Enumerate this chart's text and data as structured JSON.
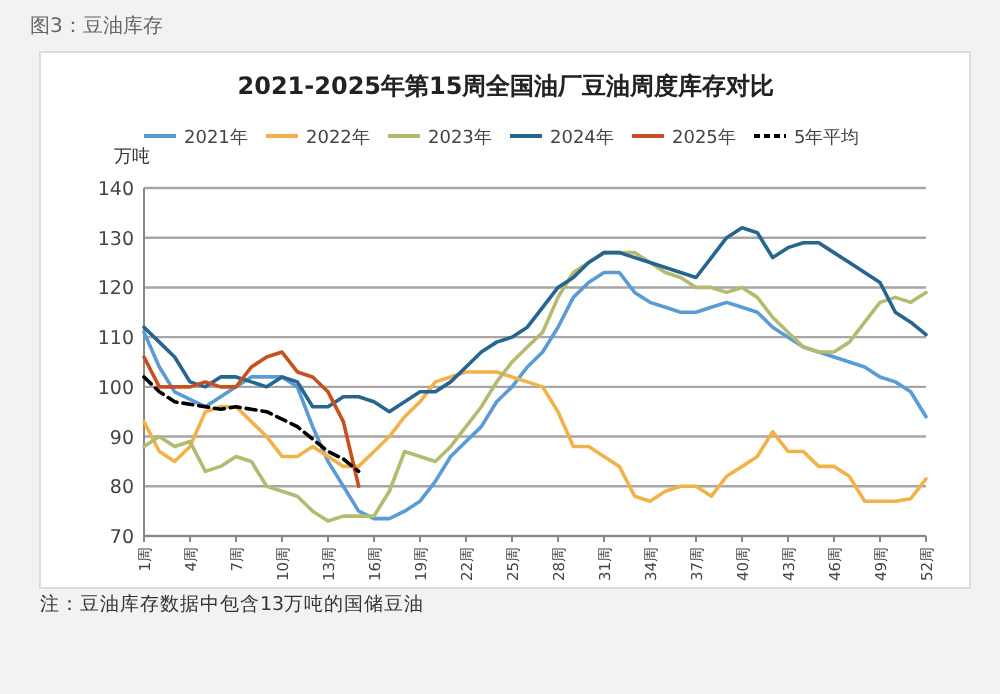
{
  "chart_data": {
    "type": "line",
    "title": "2021-2025年第15周全国油厂豆油周度库存对比",
    "ylabel": "万吨",
    "annotations": [
      "图3：豆油库存",
      "注：豆油库存数据中包含13万吨的国储豆油"
    ],
    "xlim": [
      1,
      52
    ],
    "xticks": [
      {
        "value": 1,
        "label": "1周"
      },
      {
        "value": 4,
        "label": "4周"
      },
      {
        "value": 7,
        "label": "7周"
      },
      {
        "value": 10,
        "label": "10周"
      },
      {
        "value": 13,
        "label": "13周"
      },
      {
        "value": 16,
        "label": "16周"
      },
      {
        "value": 19,
        "label": "19周"
      },
      {
        "value": 22,
        "label": "22周"
      },
      {
        "value": 25,
        "label": "25周"
      },
      {
        "value": 28,
        "label": "28周"
      },
      {
        "value": 31,
        "label": "31周"
      },
      {
        "value": 34,
        "label": "34周"
      },
      {
        "value": 37,
        "label": "37周"
      },
      {
        "value": 40,
        "label": "40周"
      },
      {
        "value": 43,
        "label": "43周"
      },
      {
        "value": 46,
        "label": "46周"
      },
      {
        "value": 49,
        "label": "49周"
      },
      {
        "value": 52,
        "label": "52周"
      }
    ],
    "ylim": [
      70,
      140
    ],
    "yticks": [
      70,
      80,
      90,
      100,
      110,
      120,
      130,
      140
    ],
    "grid": "y",
    "legend": "top",
    "marker": "none",
    "series": [
      {
        "name": "2021年",
        "color": "#5b9bd5",
        "x": [
          1,
          2,
          3,
          4,
          5,
          6,
          7,
          8,
          9,
          10,
          11,
          12,
          13,
          14,
          15,
          16,
          17,
          18,
          19,
          20,
          21,
          22,
          23,
          24,
          25,
          26,
          27,
          28,
          29,
          30,
          31,
          32,
          33,
          34,
          35,
          36,
          37,
          38,
          39,
          40,
          41,
          42,
          43,
          44,
          45,
          46,
          47,
          48,
          49,
          50,
          51,
          52
        ],
        "values": [
          111,
          104,
          99,
          97.5,
          96,
          98,
          100,
          102,
          102,
          102,
          100,
          92,
          85,
          80,
          75,
          73.5,
          73.5,
          75,
          77,
          81,
          86,
          89,
          92,
          97,
          100,
          104,
          107,
          112,
          118,
          121,
          123,
          123,
          119,
          117,
          116,
          115,
          115,
          116,
          117,
          116,
          115,
          112,
          110,
          108,
          107,
          106,
          105,
          104,
          102,
          101,
          99,
          94
        ]
      },
      {
        "name": "2022年",
        "color": "#f2b24a",
        "x": [
          1,
          2,
          3,
          4,
          5,
          6,
          7,
          8,
          9,
          10,
          11,
          12,
          13,
          14,
          15,
          16,
          17,
          18,
          19,
          20,
          21,
          22,
          23,
          24,
          25,
          26,
          27,
          28,
          29,
          30,
          31,
          32,
          33,
          34,
          35,
          36,
          37,
          38,
          39,
          40,
          41,
          42,
          43,
          44,
          45,
          46,
          47,
          48,
          49,
          50,
          51,
          52
        ],
        "values": [
          93,
          87,
          85,
          88,
          95,
          96,
          96,
          93,
          90,
          86,
          86,
          88,
          86,
          84,
          84,
          87,
          90,
          94,
          97,
          101,
          102,
          103,
          103,
          103,
          102,
          101,
          100,
          95,
          88,
          88,
          86,
          84,
          78,
          77,
          79,
          80,
          80,
          78,
          82,
          84,
          86,
          91,
          87,
          87,
          84,
          84,
          82,
          77,
          77,
          77,
          77.5,
          81.5
        ]
      },
      {
        "name": "2023年",
        "color": "#b4bb70",
        "x": [
          1,
          2,
          3,
          4,
          5,
          6,
          7,
          8,
          9,
          10,
          11,
          12,
          13,
          14,
          15,
          16,
          17,
          18,
          19,
          20,
          21,
          22,
          23,
          24,
          25,
          26,
          27,
          28,
          29,
          30,
          31,
          32,
          33,
          34,
          35,
          36,
          37,
          38,
          39,
          40,
          41,
          42,
          43,
          44,
          45,
          46,
          47,
          48,
          49,
          50,
          51,
          52
        ],
        "values": [
          88,
          90,
          88,
          89,
          83,
          84,
          86,
          85,
          80,
          79,
          78,
          75,
          73,
          74,
          74,
          74,
          79,
          87,
          86,
          85,
          88,
          92,
          96,
          101,
          105,
          108,
          111,
          118,
          123,
          125,
          127,
          127,
          127,
          125,
          123,
          122,
          120,
          120,
          119,
          120,
          118,
          114,
          111,
          108,
          107,
          107,
          109,
          113,
          117,
          118,
          117,
          119
        ]
      },
      {
        "name": "2024年",
        "color": "#25658f",
        "x": [
          1,
          2,
          3,
          4,
          5,
          6,
          7,
          8,
          9,
          10,
          11,
          12,
          13,
          14,
          15,
          16,
          17,
          18,
          19,
          20,
          21,
          22,
          23,
          24,
          25,
          26,
          27,
          28,
          29,
          30,
          31,
          32,
          33,
          34,
          35,
          36,
          37,
          38,
          39,
          40,
          41,
          42,
          43,
          44,
          45,
          46,
          47,
          48,
          49,
          50,
          51,
          52
        ],
        "values": [
          112,
          109,
          106,
          101,
          100,
          102,
          102,
          101,
          100,
          102,
          101,
          96,
          96,
          98,
          98,
          97,
          95,
          97,
          99,
          99,
          101,
          104,
          107,
          109,
          110,
          112,
          116,
          120,
          122,
          125,
          127,
          127,
          126,
          125,
          124,
          123,
          122,
          126,
          130,
          132,
          131,
          126,
          128,
          129,
          129,
          127,
          125,
          123,
          121,
          115,
          113,
          110.5
        ]
      },
      {
        "name": "2025年",
        "color": "#c8501e",
        "x": [
          1,
          2,
          3,
          4,
          5,
          6,
          7,
          8,
          9,
          10,
          11,
          12,
          13,
          14,
          15
        ],
        "values": [
          106,
          100,
          100,
          100,
          101,
          100,
          100,
          104,
          106,
          107,
          103,
          102,
          99,
          93,
          80
        ]
      },
      {
        "name": "5年平均",
        "color": "#000000",
        "line_style": "dashed",
        "x": [
          1,
          2,
          3,
          4,
          5,
          6,
          7,
          8,
          9,
          10,
          11,
          12,
          13,
          14,
          15
        ],
        "values": [
          102,
          99,
          97,
          96.5,
          96,
          95.5,
          96,
          95.5,
          95,
          93.5,
          92,
          89.5,
          87,
          85.5,
          83
        ]
      }
    ]
  }
}
